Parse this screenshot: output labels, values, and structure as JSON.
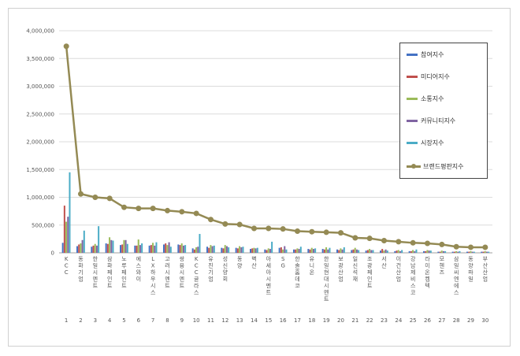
{
  "chart_data": {
    "type": "bar",
    "ylim": [
      0,
      4000000
    ],
    "y_ticks": [
      "0",
      "500,000",
      "1,000,000",
      "1,500,000",
      "2,000,000",
      "2,500,000",
      "3,000,000",
      "3,500,000",
      "4,000,000"
    ],
    "y_tick_values": [
      0,
      500000,
      1000000,
      1500000,
      2000000,
      2500000,
      3000000,
      3500000,
      4000000
    ],
    "grid": true,
    "legend_position": "right",
    "categories": [
      "KCC",
      "동화기업",
      "한일시멘트",
      "삼화페인트",
      "노루페인트",
      "에스와이",
      "LX하우시스",
      "고려시멘트",
      "쌍용시멘트",
      "KCC글라스",
      "유진기업",
      "성신양회",
      "동양",
      "벽산",
      "아세아시멘트",
      "SG",
      "한솔홈데코",
      "유니온",
      "한일현대시멘트",
      "보광산업",
      "일신석재",
      "조광페인트",
      "서산",
      "이건산업",
      "강남제비스코",
      "라이온켐텍",
      "모헨즈",
      "삼일씨엔에스",
      "동양파일",
      "부산산업"
    ],
    "ranks": [
      "1",
      "2",
      "3",
      "4",
      "5",
      "6",
      "7",
      "8",
      "9",
      "10",
      "11",
      "12",
      "13",
      "14",
      "15",
      "16",
      "17",
      "18",
      "19",
      "20",
      "21",
      "22",
      "23",
      "24",
      "25",
      "26",
      "27",
      "28",
      "29",
      "30"
    ],
    "series": [
      {
        "name": "참여지수",
        "color": "#4472C4",
        "values": [
          180000,
          120000,
          110000,
          170000,
          140000,
          130000,
          130000,
          150000,
          150000,
          80000,
          110000,
          90000,
          90000,
          70000,
          60000,
          90000,
          60000,
          70000,
          70000,
          60000,
          50000,
          40000,
          40000,
          30000,
          30000,
          30000,
          20000,
          20000,
          20000,
          20000
        ]
      },
      {
        "name": "미디어지수",
        "color": "#C0504D",
        "values": [
          850000,
          150000,
          130000,
          160000,
          150000,
          130000,
          140000,
          170000,
          140000,
          60000,
          90000,
          80000,
          80000,
          80000,
          50000,
          100000,
          60000,
          60000,
          60000,
          50000,
          60000,
          50000,
          70000,
          40000,
          30000,
          30000,
          20000,
          20000,
          20000,
          20000
        ]
      },
      {
        "name": "소통지수",
        "color": "#9BBB59",
        "values": [
          560000,
          170000,
          160000,
          280000,
          230000,
          240000,
          180000,
          140000,
          170000,
          100000,
          140000,
          140000,
          120000,
          90000,
          80000,
          60000,
          80000,
          90000,
          100000,
          80000,
          90000,
          70000,
          40000,
          50000,
          50000,
          50000,
          40000,
          30000,
          30000,
          30000
        ]
      },
      {
        "name": "커뮤니티지수",
        "color": "#8064A2",
        "values": [
          650000,
          230000,
          130000,
          230000,
          230000,
          140000,
          130000,
          190000,
          130000,
          110000,
          120000,
          120000,
          100000,
          80000,
          70000,
          120000,
          70000,
          70000,
          60000,
          60000,
          60000,
          50000,
          60000,
          30000,
          30000,
          40000,
          30000,
          20000,
          20000,
          20000
        ]
      },
      {
        "name": "시장지수",
        "color": "#4BACC6",
        "values": [
          1450000,
          400000,
          480000,
          220000,
          160000,
          170000,
          190000,
          110000,
          140000,
          340000,
          130000,
          100000,
          110000,
          90000,
          200000,
          60000,
          110000,
          80000,
          90000,
          100000,
          50000,
          50000,
          40000,
          50000,
          60000,
          40000,
          30000,
          30000,
          20000,
          20000
        ]
      }
    ],
    "line_series": {
      "name": "브랜드평판지수",
      "color": "#948A54",
      "values": [
        3720000,
        1060000,
        1000000,
        980000,
        820000,
        800000,
        800000,
        760000,
        740000,
        710000,
        600000,
        520000,
        510000,
        440000,
        440000,
        430000,
        390000,
        380000,
        370000,
        360000,
        270000,
        260000,
        220000,
        200000,
        180000,
        170000,
        150000,
        110000,
        100000,
        100000
      ]
    }
  }
}
